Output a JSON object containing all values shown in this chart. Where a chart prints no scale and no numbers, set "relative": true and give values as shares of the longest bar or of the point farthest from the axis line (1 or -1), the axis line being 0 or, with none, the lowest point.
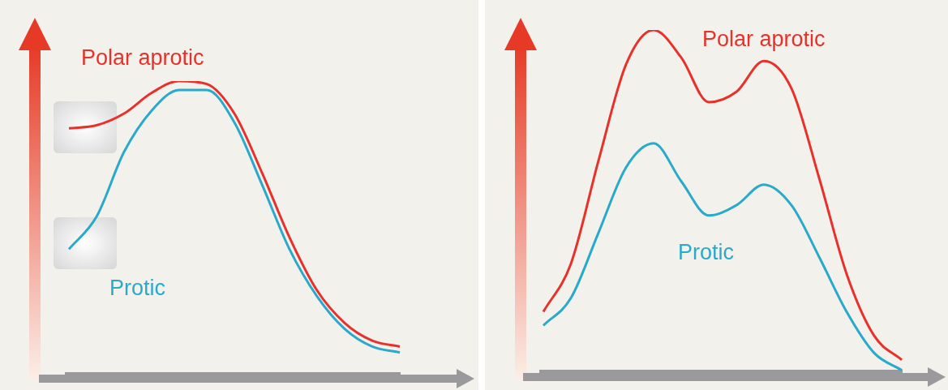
{
  "chart_data": [
    {
      "type": "line",
      "relative": true,
      "legend": false,
      "categories": [
        null,
        null,
        null,
        null,
        null,
        null,
        null,
        null,
        null,
        null,
        null,
        null,
        null
      ],
      "series": [
        {
          "name": "Polar aprotic",
          "color": "#e8312a",
          "values": [
            0.84,
            0.85,
            0.89,
            0.96,
            1.0,
            0.99,
            0.89,
            0.69,
            0.47,
            0.29,
            0.18,
            0.12,
            0.1
          ]
        },
        {
          "name": "Protic",
          "color": "#29a9cc",
          "values": [
            0.43,
            0.54,
            0.76,
            0.9,
            0.97,
            0.97,
            0.86,
            0.65,
            0.43,
            0.27,
            0.16,
            0.1,
            0.08
          ]
        }
      ]
    },
    {
      "type": "line",
      "relative": true,
      "legend": false,
      "categories": [
        null,
        null,
        null,
        null,
        null,
        null,
        null,
        null,
        null,
        null,
        null,
        null,
        null,
        null
      ],
      "series": [
        {
          "name": "Polar aprotic",
          "color": "#e8312a",
          "values": [
            0.18,
            0.32,
            0.62,
            0.9,
            1.0,
            0.92,
            0.79,
            0.82,
            0.91,
            0.83,
            0.57,
            0.29,
            0.11,
            0.04
          ]
        },
        {
          "name": "Protic",
          "color": "#29a9cc",
          "values": [
            0.14,
            0.22,
            0.41,
            0.6,
            0.67,
            0.56,
            0.46,
            0.49,
            0.55,
            0.49,
            0.34,
            0.18,
            0.06,
            0.01
          ]
        }
      ]
    }
  ]
}
